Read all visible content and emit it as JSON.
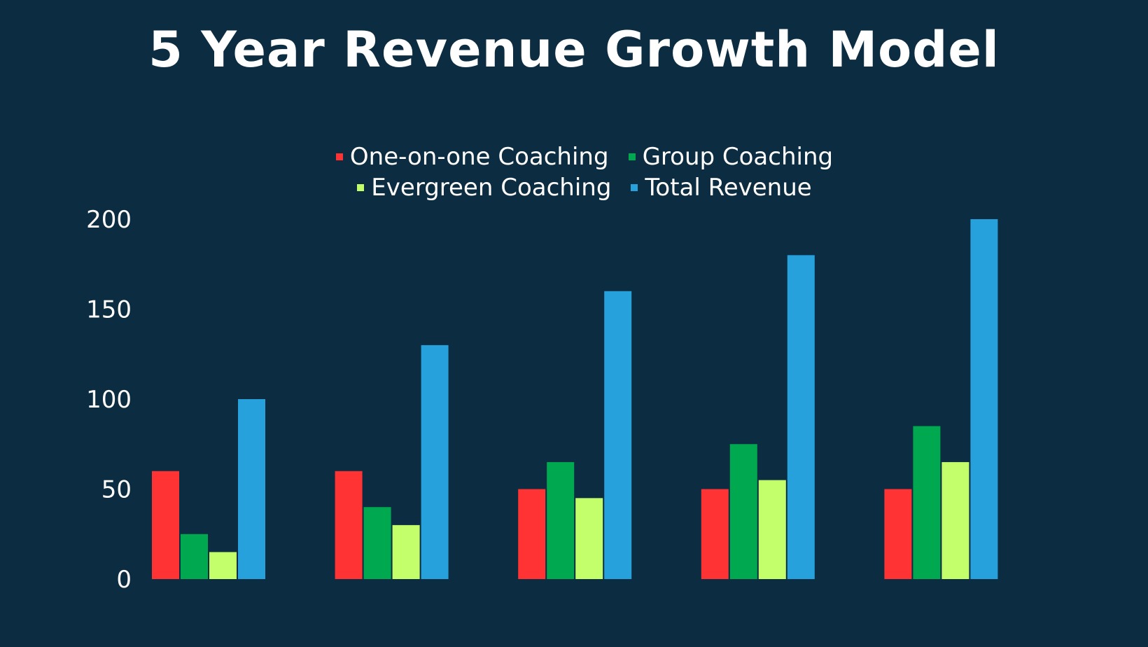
{
  "chart_data": {
    "type": "bar",
    "title": "5 Year Revenue Growth Model",
    "xlabel": "",
    "ylabel": "",
    "categories": [
      "",
      "",
      "",
      "",
      ""
    ],
    "ylim": [
      0,
      200
    ],
    "yticks": [
      "0",
      "50",
      "100",
      "150",
      "200"
    ],
    "grid": false,
    "legend_position": "top",
    "series": [
      {
        "name": "One-on-one Coaching",
        "color": "#ff3333",
        "values": [
          60,
          60,
          50,
          50,
          50
        ]
      },
      {
        "name": "Group Coaching",
        "color": "#00a84f",
        "values": [
          25,
          40,
          65,
          75,
          85
        ]
      },
      {
        "name": "Evergreen Coaching",
        "color": "#c2ff6b",
        "values": [
          15,
          30,
          45,
          55,
          65
        ]
      },
      {
        "name": "Total Revenue",
        "color": "#26a1dc",
        "values": [
          100,
          130,
          160,
          180,
          200
        ]
      }
    ]
  },
  "colors": {
    "background": "#0c2d41",
    "text": "#ffffff"
  }
}
